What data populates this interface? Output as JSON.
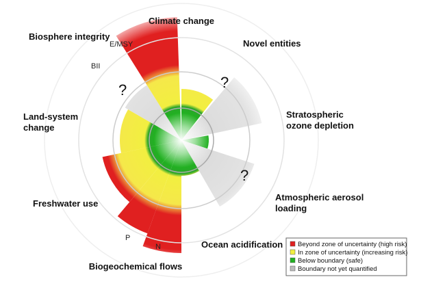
{
  "labels": {
    "climate_change": "Climate change",
    "novel_entities": "Novel entities",
    "stratospheric_ozone": [
      "Stratospheric",
      "ozone depletion"
    ],
    "atmospheric_aerosol": [
      "Atmospheric aerosol",
      "loading"
    ],
    "ocean_acidification": "Ocean acidification",
    "biogeochemical_flows": "Biogeochemical flows",
    "freshwater_use": "Freshwater use",
    "land_system_change": [
      "Land-system",
      "change"
    ],
    "biosphere_integrity": "Biosphere integrity"
  },
  "sub_labels": {
    "emsy": "E/MSY",
    "bii": "BII",
    "p": "P",
    "n": "N"
  },
  "unknown_marks": [
    "?",
    "?",
    "?"
  ],
  "legend": [
    "Beyond zone of uncertainty (high risk)",
    "In zone of uncertainty (increasing risk)",
    "Below boundary (safe)",
    "Boundary not yet quantified"
  ]
}
